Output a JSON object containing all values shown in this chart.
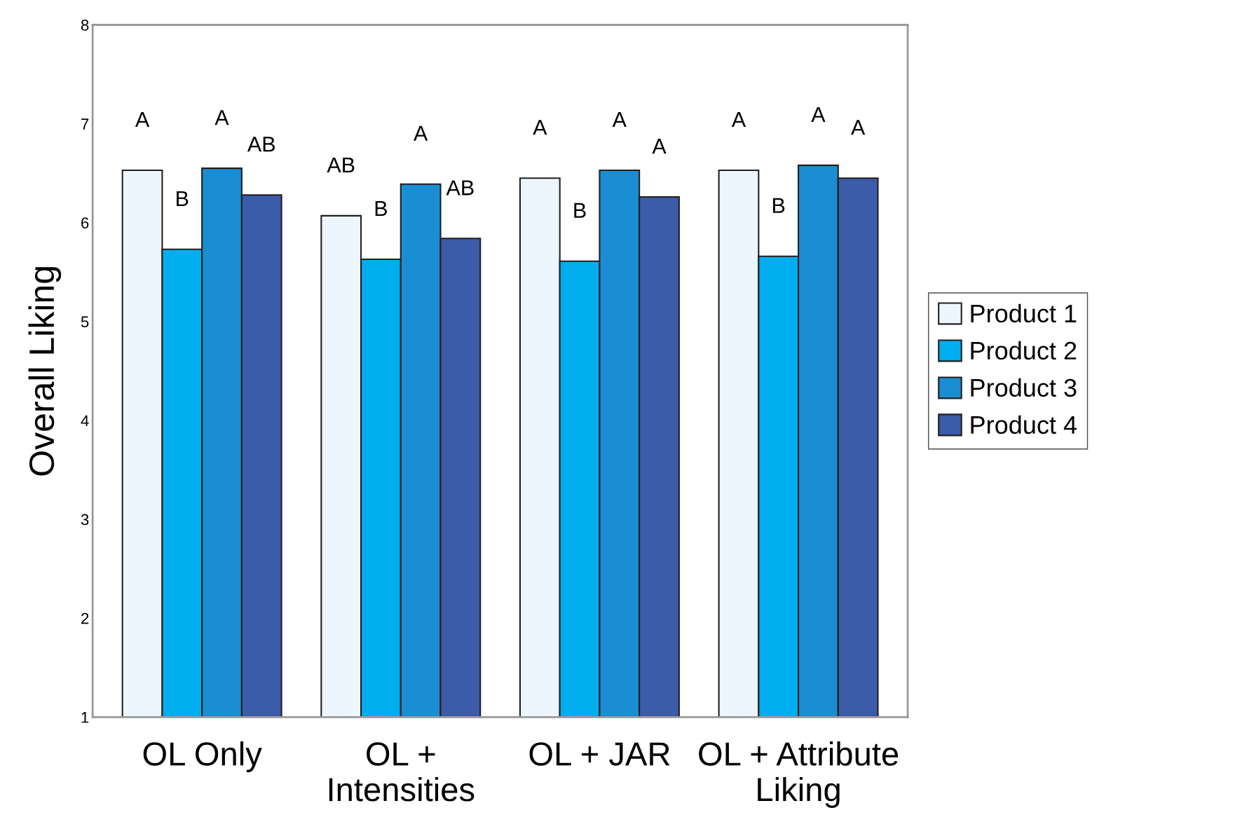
{
  "chart_data": {
    "type": "bar",
    "ylabel": "Overall Liking",
    "categories": [
      "OL Only",
      "OL +\nIntensities",
      "OL + JAR",
      "OL + Attribute\nLiking"
    ],
    "series": [
      {
        "name": "Product 1",
        "color": "#eef6fd",
        "values": [
          6.53,
          6.07,
          6.45,
          6.53
        ],
        "value_labels": [
          "A",
          "AB",
          "A",
          "A"
        ]
      },
      {
        "name": "Product 2",
        "color": "#00aeef",
        "values": [
          5.73,
          5.63,
          5.61,
          5.66
        ],
        "value_labels": [
          "B",
          "B",
          "B",
          "B"
        ]
      },
      {
        "name": "Product 3",
        "color": "#1b8dd2",
        "values": [
          6.55,
          6.39,
          6.53,
          6.58
        ],
        "value_labels": [
          "A",
          "A",
          "A",
          "A"
        ]
      },
      {
        "name": "Product 4",
        "color": "#3c5ba8",
        "values": [
          6.28,
          5.84,
          6.26,
          6.45
        ],
        "value_labels": [
          "AB",
          "AB",
          "A",
          "A"
        ]
      }
    ],
    "ylim": [
      1,
      8
    ],
    "yticks": [
      1,
      2,
      3,
      4,
      5,
      6,
      7,
      8
    ],
    "grid": false,
    "legend": "right"
  }
}
